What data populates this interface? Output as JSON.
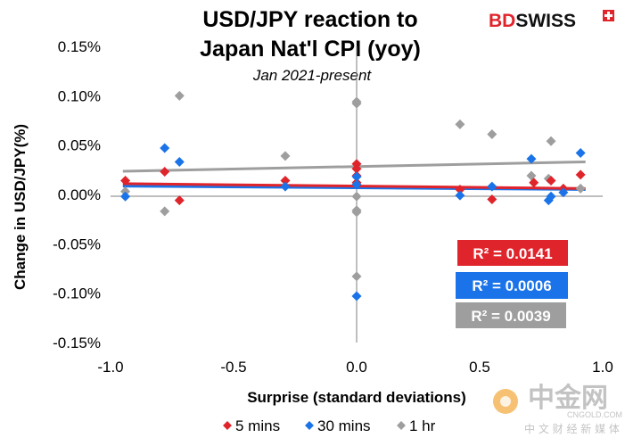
{
  "brand": {
    "name": "BDSWISS",
    "red_part": "BD",
    "black_part": "SWISS",
    "color": "#e0242b"
  },
  "watermark": {
    "name": "中金网",
    "url": "CNGOLD.COM",
    "tagline": "中 文 财 经 新 媒 体"
  },
  "colors": {
    "red": "#e0242b",
    "blue": "#1a73e8",
    "gray": "#9e9e9e"
  },
  "chart_data": {
    "type": "scatter",
    "title_lines": [
      "USD/JPY reaction to",
      "Japan Nat'l CPI (yoy)"
    ],
    "subtitle": "Jan 2021-present",
    "xlabel": "Surprise (standard deviations)",
    "ylabel": "Change in USD/JPY(%)",
    "xlim": [
      -1.0,
      1.0
    ],
    "ylim": [
      -0.15,
      0.15
    ],
    "x_ticks": [
      "-1.0",
      "-0.5",
      "0.0",
      "0.5",
      "1.0"
    ],
    "x_tick_values": [
      -1.0,
      -0.5,
      0.0,
      0.5,
      1.0
    ],
    "y_ticks": [
      "0.15%",
      "0.10%",
      "0.05%",
      "0.00%",
      "-0.05%",
      "-0.10%",
      "-0.15%"
    ],
    "y_tick_values": [
      0.15,
      0.1,
      0.05,
      0.0,
      -0.05,
      -0.1,
      -0.15
    ],
    "legend_position": "bottom",
    "series": [
      {
        "name": "5 mins",
        "color": "#e0242b",
        "points": [
          [
            -0.94,
            0.014
          ],
          [
            -0.78,
            0.023
          ],
          [
            -0.72,
            -0.006
          ],
          [
            -0.29,
            0.014
          ],
          [
            0.0,
            0.031
          ],
          [
            0.0,
            0.026
          ],
          [
            0.0,
            0.019
          ],
          [
            0.0,
            0.012
          ],
          [
            0.42,
            0.005
          ],
          [
            0.55,
            -0.005
          ],
          [
            0.72,
            0.012
          ],
          [
            0.79,
            0.014
          ],
          [
            0.84,
            0.006
          ],
          [
            0.91,
            0.02
          ]
        ],
        "trend": [
          [
            -0.95,
            0.011
          ],
          [
            0.93,
            0.006
          ]
        ],
        "r2": "R² = 0.0141"
      },
      {
        "name": "30 mins",
        "color": "#1a73e8",
        "points": [
          [
            -0.94,
            -0.002
          ],
          [
            -0.78,
            0.047
          ],
          [
            -0.72,
            0.033
          ],
          [
            -0.29,
            0.008
          ],
          [
            0.0,
            0.018
          ],
          [
            0.0,
            0.01
          ],
          [
            0.0,
            -0.103
          ],
          [
            0.42,
            -0.001
          ],
          [
            0.55,
            0.008
          ],
          [
            0.71,
            0.036
          ],
          [
            0.78,
            -0.006
          ],
          [
            0.79,
            -0.002
          ],
          [
            0.84,
            0.002
          ],
          [
            0.91,
            0.042
          ]
        ],
        "trend": [
          [
            -0.95,
            0.0085
          ],
          [
            0.93,
            0.005
          ]
        ],
        "r2": "R² = 0.0006"
      },
      {
        "name": "1 hr",
        "color": "#9e9e9e",
        "points": [
          [
            -0.94,
            0.003
          ],
          [
            -0.78,
            -0.017
          ],
          [
            -0.72,
            0.1
          ],
          [
            -0.29,
            0.039
          ],
          [
            0.0,
            0.094
          ],
          [
            0.0,
            0.092
          ],
          [
            0.0,
            -0.002
          ],
          [
            0.0,
            -0.016
          ],
          [
            0.0,
            -0.018
          ],
          [
            0.0,
            -0.083
          ],
          [
            0.42,
            0.071
          ],
          [
            0.55,
            0.061
          ],
          [
            0.71,
            0.019
          ],
          [
            0.78,
            0.016
          ],
          [
            0.79,
            0.054
          ],
          [
            0.91,
            0.006
          ]
        ],
        "trend": [
          [
            -0.95,
            0.0235
          ],
          [
            0.93,
            0.033
          ]
        ],
        "r2": "R² = 0.0039"
      }
    ]
  }
}
